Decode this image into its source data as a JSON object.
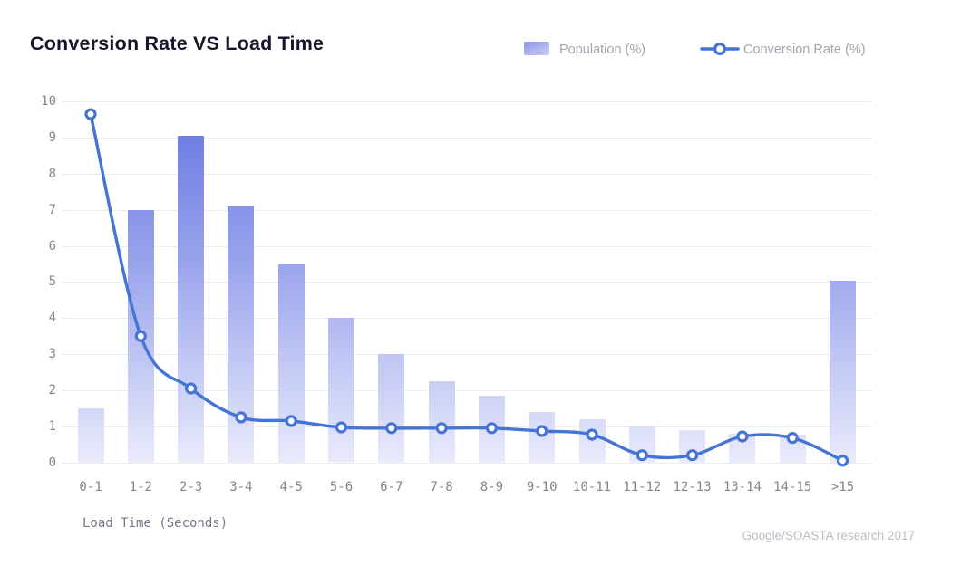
{
  "header": {
    "title": "Conversion Rate VS Load Time"
  },
  "legend": {
    "population_label": "Population (%)",
    "conversion_label": "Conversion Rate (%)"
  },
  "chart_data": {
    "type": "bar+line",
    "title": "Conversion Rate VS Load Time",
    "categories": [
      "0-1",
      "1-2",
      "2-3",
      "3-4",
      "4-5",
      "5-6",
      "6-7",
      "7-8",
      "8-9",
      "9-10",
      "10-11",
      "11-12",
      "12-13",
      "13-14",
      "14-15",
      ">15"
    ],
    "series": [
      {
        "name": "Population (%)",
        "type": "bar",
        "values": [
          1.5,
          7.0,
          9.05,
          7.1,
          5.5,
          4.0,
          3.0,
          2.25,
          1.85,
          1.4,
          1.2,
          1.0,
          0.9,
          0.8,
          0.78,
          5.05
        ]
      },
      {
        "name": "Conversion Rate (%)",
        "type": "line",
        "values": [
          9.65,
          3.5,
          2.05,
          1.25,
          1.15,
          0.97,
          0.95,
          0.95,
          0.95,
          0.87,
          0.77,
          0.2,
          0.2,
          0.72,
          0.68,
          0.05
        ]
      }
    ],
    "xlabel": "Load Time (Seconds)",
    "ylabel": "",
    "ylim": [
      0,
      10
    ],
    "yticks": [
      0,
      1,
      2,
      3,
      4,
      5,
      6,
      7,
      8,
      9,
      10
    ],
    "grid": "horizontal",
    "legend_position": "top-right"
  },
  "footer": {
    "xlabel": "Load Time (Seconds)",
    "attribution": "Google/SOASTA research 2017"
  },
  "colors": {
    "title": "#15152b",
    "bar_gradient_top": "#6474e1",
    "bar_gradient_mid": "#9aa4ec",
    "bar_gradient_bottom": "#e9ebfb",
    "line": "#4574d7",
    "marker_fill": "#ffffff",
    "grid": "#ededf1",
    "tick_text": "#82868f",
    "xlabel_text": "#75798a",
    "legend_text": "#a0a6b2",
    "legend_swatch_top": "#8c95e9",
    "legend_swatch_bottom": "#cbcff5",
    "attribution_text": "#b9bdc6"
  }
}
